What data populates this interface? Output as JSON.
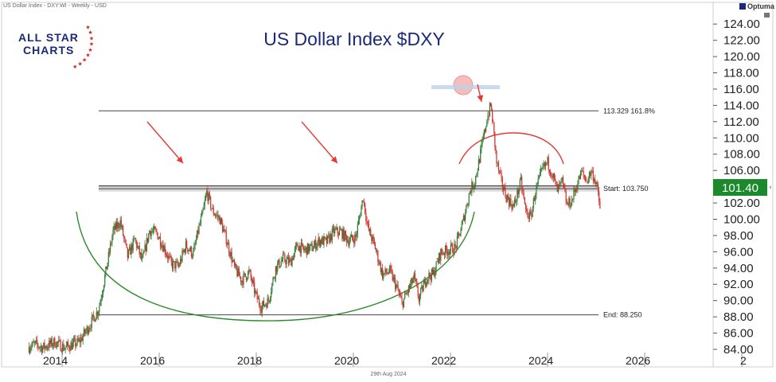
{
  "header": {
    "instrument_label": "US Dollar Index - DXY:WI - Weekly - USD"
  },
  "logo": {
    "line1": "ALL STAR",
    "line2": "CHARTS"
  },
  "brand": {
    "name": "Optuma"
  },
  "colors": {
    "up": "#2e7d32",
    "down": "#d32f2f",
    "price_box": "#1b8a2d",
    "green_arc": "#2e8b2e",
    "red_arc": "#e53935",
    "title": "#1b2a78",
    "resistance_band": "#b8b8b8"
  },
  "chart_data": {
    "type": "candlestick",
    "title": "US Dollar Index $DXY",
    "date_label": "29th Aug 2024",
    "x_axis": {
      "ticks": [
        "2014",
        "2016",
        "2018",
        "2020",
        "2022",
        "2024",
        "2026",
        "2"
      ],
      "range": [
        2013.25,
        2028.0
      ]
    },
    "y_axis": {
      "ticks": [
        "84.00",
        "86.00",
        "88.00",
        "90.00",
        "92.00",
        "94.00",
        "96.00",
        "98.00",
        "100.00",
        "102.00",
        "104.00",
        "106.00",
        "108.00",
        "110.00",
        "112.00",
        "114.00",
        "116.00",
        "118.00",
        "120.00",
        "122.00",
        "124.00"
      ],
      "range": [
        84.0,
        124.5
      ]
    },
    "current_price": "101.40",
    "levels": [
      {
        "label": "113.329   161.8%",
        "value": 113.329
      },
      {
        "label": "Start:   103.750",
        "value": 103.75
      },
      {
        "label": "End:   88.250",
        "value": 88.25
      }
    ],
    "path": [
      [
        2013.3,
        84.3
      ],
      [
        2013.45,
        84.6
      ],
      [
        2013.6,
        84.2
      ],
      [
        2013.85,
        84.9
      ],
      [
        2014.05,
        84.2
      ],
      [
        2014.35,
        84.9
      ],
      [
        2014.55,
        86.8
      ],
      [
        2014.75,
        88.9
      ],
      [
        2014.9,
        93.5
      ],
      [
        2015.05,
        98.5
      ],
      [
        2015.2,
        99.7
      ],
      [
        2015.35,
        95.4
      ],
      [
        2015.5,
        97.5
      ],
      [
        2015.65,
        94.8
      ],
      [
        2015.8,
        98.6
      ],
      [
        2015.95,
        98.3
      ],
      [
        2016.1,
        96.5
      ],
      [
        2016.25,
        94.5
      ],
      [
        2016.4,
        94.2
      ],
      [
        2016.55,
        96.8
      ],
      [
        2016.7,
        95.7
      ],
      [
        2016.8,
        98.5
      ],
      [
        2016.9,
        100.8
      ],
      [
        2016.98,
        103.3
      ],
      [
        2017.1,
        101.0
      ],
      [
        2017.25,
        100.0
      ],
      [
        2017.4,
        97.2
      ],
      [
        2017.55,
        94.0
      ],
      [
        2017.7,
        92.5
      ],
      [
        2017.85,
        93.5
      ],
      [
        2018.0,
        90.5
      ],
      [
        2018.1,
        89.2
      ],
      [
        2018.25,
        90.0
      ],
      [
        2018.4,
        94.0
      ],
      [
        2018.55,
        95.1
      ],
      [
        2018.7,
        94.7
      ],
      [
        2018.85,
        96.8
      ],
      [
        2018.98,
        96.2
      ],
      [
        2019.15,
        96.5
      ],
      [
        2019.3,
        97.4
      ],
      [
        2019.45,
        97.2
      ],
      [
        2019.6,
        98.5
      ],
      [
        2019.75,
        98.4
      ],
      [
        2019.9,
        97.4
      ],
      [
        2020.05,
        97.8
      ],
      [
        2020.2,
        102.7
      ],
      [
        2020.3,
        98.9
      ],
      [
        2020.45,
        96.5
      ],
      [
        2020.6,
        93.2
      ],
      [
        2020.75,
        93.6
      ],
      [
        2020.9,
        91.5
      ],
      [
        2021.0,
        89.6
      ],
      [
        2021.1,
        90.9
      ],
      [
        2021.25,
        92.8
      ],
      [
        2021.35,
        90.2
      ],
      [
        2021.5,
        92.8
      ],
      [
        2021.65,
        93.3
      ],
      [
        2021.8,
        95.9
      ],
      [
        2021.95,
        96.2
      ],
      [
        2022.1,
        96.5
      ],
      [
        2022.25,
        99.5
      ],
      [
        2022.4,
        103.5
      ],
      [
        2022.5,
        104.7
      ],
      [
        2022.6,
        107.5
      ],
      [
        2022.75,
        112.3
      ],
      [
        2022.83,
        114.0
      ],
      [
        2022.88,
        111.5
      ],
      [
        2022.95,
        107.0
      ],
      [
        2023.05,
        104.5
      ],
      [
        2023.15,
        102.8
      ],
      [
        2023.3,
        101.5
      ],
      [
        2023.45,
        104.6
      ],
      [
        2023.55,
        101.0
      ],
      [
        2023.65,
        100.2
      ],
      [
        2023.75,
        103.4
      ],
      [
        2023.9,
        106.2
      ],
      [
        2024.0,
        107.0
      ],
      [
        2024.1,
        105.5
      ],
      [
        2024.2,
        103.5
      ],
      [
        2024.3,
        104.6
      ],
      [
        2024.4,
        101.7
      ],
      [
        2024.5,
        102.3
      ],
      [
        2024.6,
        104.2
      ],
      [
        2024.7,
        105.8
      ],
      [
        2024.8,
        104.7
      ],
      [
        2024.9,
        105.9
      ],
      [
        2025.0,
        104.5
      ],
      [
        2025.08,
        101.4
      ]
    ]
  }
}
